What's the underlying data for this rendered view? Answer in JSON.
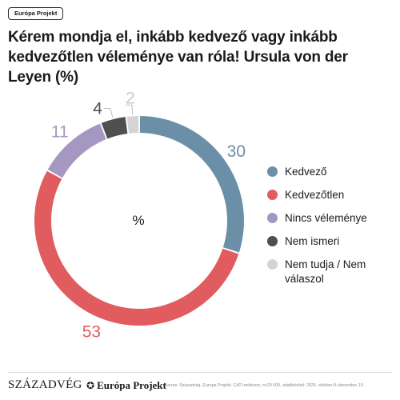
{
  "badge": "Európa Projekt",
  "title": "Kérem mondja el, inkább kedvező vagy inkább kedvezőtlen véleménye van róla! Ursula von der Leyen (%)",
  "chart_data": {
    "type": "pie",
    "center_label": "%",
    "categories": [
      "Kedvező",
      "Kedvezőtlen",
      "Nincs véleménye",
      "Nem ismeri",
      "Nem tudja / Nem válaszol"
    ],
    "values": [
      30,
      53,
      11,
      4,
      2
    ],
    "colors": [
      "#6b8fa6",
      "#e05c5f",
      "#a497c2",
      "#4f4f4f",
      "#d4d4d4"
    ],
    "label_colors": [
      "#6b8fa6",
      "#e05c5f",
      "#a497c2",
      "#4f4f4f",
      "#c8c8c8"
    ],
    "legend_position": "right"
  },
  "legend": [
    {
      "label": "Kedvező",
      "color": "#6b8fa6"
    },
    {
      "label": "Kedvezőtlen",
      "color": "#e05c5f"
    },
    {
      "label": "Nincs véleménye",
      "color": "#a497c2"
    },
    {
      "label": "Nem ismeri",
      "color": "#4f4f4f"
    },
    {
      "label": "Nem tudja / Nem válaszol",
      "color": "#d4d4d4"
    }
  ],
  "footer": {
    "brand1": "SZÁZADVÉG",
    "brand2": "Európa Projekt",
    "brand2_icon": "stars-icon",
    "source": "Forrás: Századvég, Európa Projekt. CATI-módszer, n=29 000, adatfelvétel: 2025. október 8–december 10."
  }
}
